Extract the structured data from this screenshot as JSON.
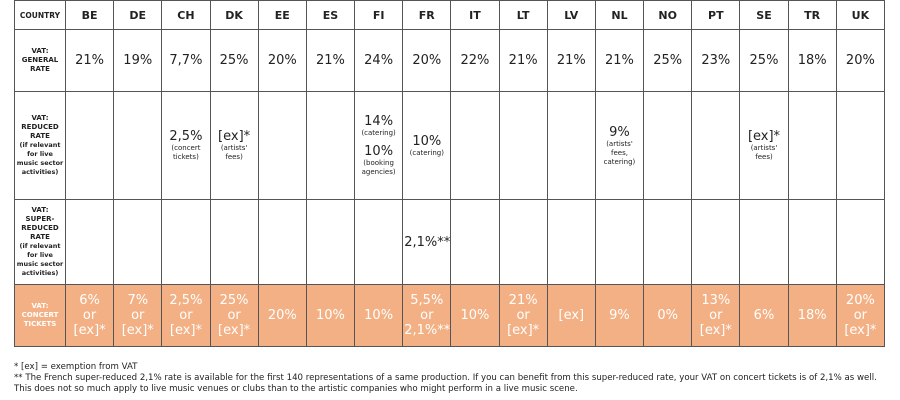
{
  "table": {
    "header": [
      "COUNTRY",
      "BE",
      "DE",
      "CH",
      "DK",
      "EE",
      "ES",
      "FI",
      "FR",
      "IT",
      "LT",
      "LV",
      "NL",
      "NO",
      "PT",
      "SE",
      "TR",
      "UK"
    ],
    "rows": [
      {
        "label": "VAT: GENERAL RATE",
        "cells": [
          "21%",
          "19%",
          "7,7%",
          "25%",
          "20%",
          "21%",
          "24%",
          "20%",
          "22%",
          "21%",
          "21%",
          "21%",
          "25%",
          "23%",
          "25%",
          "18%",
          "20%"
        ]
      },
      {
        "label": "VAT: REDUCED RATE",
        "sublabel": "(if relevant for live music sector activities)",
        "cells": [
          [],
          [],
          [
            {
              "rate": "2,5%",
              "note": "(concert tickets)"
            }
          ],
          [
            {
              "rate": "[ex]*",
              "note": "(artists' fees)"
            }
          ],
          [],
          [],
          [
            {
              "rate": "14%",
              "note": "(catering)"
            },
            {
              "rate": "10%",
              "note": "(booking agencies)"
            }
          ],
          [
            {
              "rate": "10%",
              "note": "(catering)"
            }
          ],
          [],
          [],
          [],
          [
            {
              "rate": "9%",
              "note": "(artists' fees, catering)"
            }
          ],
          [],
          [],
          [
            {
              "rate": "[ex]*",
              "note": "(artists' fees)"
            }
          ],
          [],
          []
        ]
      },
      {
        "label": "VAT: SUPER-REDUCED RATE",
        "sublabel": "(if relevant for live music sector activities)",
        "cells": [
          [],
          [],
          [],
          [],
          [],
          [],
          [],
          [
            {
              "rate": "2,1%**"
            }
          ],
          [],
          [],
          [],
          [],
          [],
          [],
          [],
          [],
          []
        ]
      },
      {
        "label": "VAT: CONCERT TICKETS",
        "cells": [
          [
            "6%",
            "or",
            "[ex]*"
          ],
          [
            "7%",
            "or",
            "[ex]*"
          ],
          [
            "2,5%",
            "or",
            "[ex]*"
          ],
          [
            "25%",
            "or",
            "[ex]*"
          ],
          "20%",
          "10%",
          "10%",
          [
            "5,5%",
            "or",
            "2,1%**"
          ],
          "10%",
          [
            "21%",
            "or",
            "[ex]*"
          ],
          "[ex]",
          "9%",
          "0%",
          [
            "13%",
            "or",
            "[ex]*"
          ],
          "6%",
          "18%",
          [
            "20%",
            "or",
            "[ex]*"
          ]
        ]
      }
    ]
  },
  "footnotes": [
    "* [ex] = exemption from VAT",
    "** The French super-reduced 2,1% rate is available for the first 140 representations of a same production. If you can benefit from this super-reduced rate, your VAT on concert tickets is of 2,1% as well. This does not so much apply to live music venues or clubs than to the artistic companies who might perform in a live music scene."
  ]
}
